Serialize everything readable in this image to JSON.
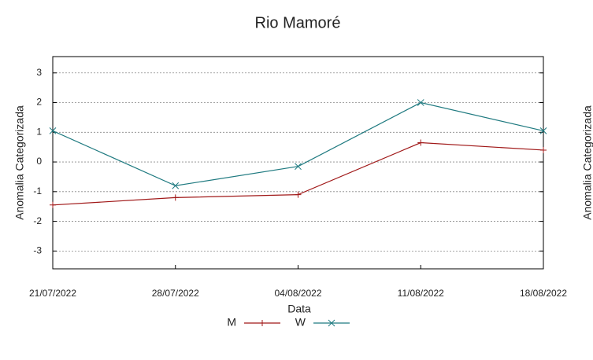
{
  "chart_data": {
    "type": "line",
    "title": "Rio Mamoré",
    "xlabel": "Data",
    "ylabel": "Anomalia Categorizada",
    "y2label": "Anomalia Categorizada",
    "categories": [
      "21/07/2022",
      "28/07/2022",
      "04/08/2022",
      "11/08/2022",
      "18/08/2022"
    ],
    "series": [
      {
        "name": "M",
        "color": "#a01818",
        "marker": "+",
        "values": [
          -1.45,
          -1.2,
          -1.1,
          0.65,
          0.4
        ]
      },
      {
        "name": "W",
        "color": "#1f7a80",
        "marker": "x",
        "values": [
          1.05,
          -0.8,
          -0.15,
          2.0,
          1.05
        ]
      }
    ],
    "ylim": [
      -3.6,
      3.55
    ],
    "yticks": [
      -3,
      -2,
      -1,
      0,
      1,
      2,
      3
    ],
    "grid": true
  }
}
